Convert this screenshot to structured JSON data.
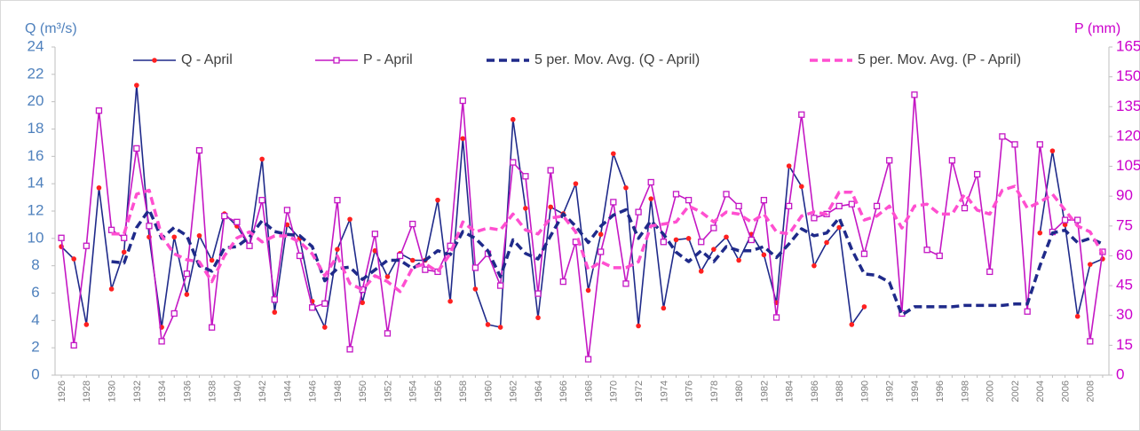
{
  "chart_data": {
    "type": "line",
    "y_label": "Q (m³/s)",
    "y2_label": "P (mm)",
    "categories": [
      "1926",
      null,
      "1928",
      null,
      "1930",
      null,
      "1932",
      null,
      "1934",
      null,
      "1936",
      null,
      "1938",
      null,
      "1940",
      null,
      "1942",
      null,
      "1944",
      null,
      "1946",
      null,
      "1948",
      null,
      "1950",
      null,
      "1952",
      null,
      "1954",
      null,
      "1956",
      null,
      "1958",
      null,
      "1960",
      null,
      "1962",
      null,
      "1964",
      null,
      "1966",
      null,
      "1968",
      null,
      "1970",
      null,
      "1972",
      null,
      "1974",
      null,
      "1976",
      null,
      "1978",
      null,
      "1980",
      null,
      "1982",
      null,
      "1984",
      null,
      "1986",
      null,
      "1988",
      null,
      "1990",
      null,
      "1992",
      null,
      "1994",
      null,
      "1996",
      null,
      "1998",
      null,
      "2000",
      null,
      "2002",
      null,
      "2004",
      null,
      "2006",
      null,
      "2008",
      null
    ],
    "series": [
      {
        "name": "Q - April",
        "color": "#1f2a8a",
        "marker": "plus",
        "marker_color": "#ff2020",
        "line_style": "solid",
        "axis": "y",
        "values": [
          9.4,
          8.5,
          3.7,
          13.7,
          6.3,
          9.0,
          21.2,
          10.1,
          3.5,
          10.1,
          5.9,
          10.2,
          8.4,
          11.8,
          10.9,
          9.4,
          15.8,
          4.6,
          11.0,
          10.0,
          5.4,
          3.5,
          9.2,
          11.4,
          5.3,
          9.1,
          7.2,
          8.9,
          8.4,
          8.4,
          12.8,
          5.4,
          17.3,
          6.3,
          3.7,
          3.5,
          18.7,
          12.2,
          4.2,
          12.3,
          11.8,
          14.0,
          6.2,
          10.3,
          16.2,
          13.7,
          3.6,
          12.9,
          4.9,
          9.9,
          10.0,
          7.6,
          9.2,
          10.1,
          8.4,
          10.3,
          8.8,
          5.3,
          15.3,
          13.8,
          8.0,
          9.7,
          10.8,
          3.7,
          5.0,
          null,
          null,
          null,
          null,
          null,
          null,
          null,
          null,
          null,
          null,
          null,
          null,
          null,
          10.4,
          16.4,
          11.0,
          4.3,
          8.1,
          8.5
        ]
      },
      {
        "name": "P - April",
        "color": "#c417c4",
        "marker": "square",
        "marker_color": "#c417c4",
        "line_style": "solid",
        "axis": "y2",
        "values": [
          69,
          15,
          65,
          133,
          73,
          69,
          114,
          75,
          17,
          31,
          51,
          113,
          24,
          80,
          77,
          65,
          88,
          38,
          83,
          60,
          34,
          36,
          88,
          13,
          43,
          71,
          21,
          60,
          76,
          53,
          52,
          65,
          138,
          54,
          61,
          45,
          107,
          100,
          41,
          103,
          47,
          67,
          8,
          62,
          87,
          46,
          82,
          97,
          67,
          91,
          88,
          67,
          74,
          91,
          85,
          68,
          88,
          29,
          85,
          131,
          79,
          81,
          85,
          86,
          61,
          85,
          108,
          31,
          141,
          63,
          60,
          108,
          84,
          101,
          52,
          120,
          116,
          32,
          116,
          72,
          78,
          78,
          17,
          62
        ]
      },
      {
        "name": "5 per. Mov. Avg. (Q - April)",
        "color": "#1f2a8a",
        "marker": null,
        "line_style": "dashed",
        "axis": "y",
        "values": [
          null,
          null,
          null,
          null,
          8.3,
          8.2,
          10.8,
          12.1,
          10.0,
          10.8,
          10.2,
          8.0,
          7.6,
          9.3,
          9.4,
          10.1,
          11.3,
          10.5,
          10.3,
          10.2,
          9.4,
          6.9,
          7.8,
          7.9,
          7.0,
          7.7,
          8.4,
          8.4,
          7.8,
          8.4,
          9.1,
          8.8,
          10.5,
          10.0,
          9.1,
          7.2,
          9.9,
          8.9,
          8.5,
          10.2,
          11.8,
          10.9,
          9.7,
          10.9,
          11.7,
          12.1,
          10.0,
          11.3,
          10.3,
          9.0,
          8.3,
          9.1,
          8.3,
          9.4,
          9.1,
          9.1,
          9.4,
          8.6,
          9.6,
          10.7,
          10.2,
          10.4,
          11.5,
          9.2,
          7.4,
          7.3,
          6.8,
          4.4,
          5.0,
          5.0,
          5.0,
          5.0,
          5.1,
          5.1,
          5.1,
          5.1,
          5.2,
          5.2,
          8.0,
          10.4,
          10.6,
          9.7,
          10.0,
          9.6
        ]
      },
      {
        "name": "5 per. Mov. Avg. (P - April)",
        "color": "#ff4fd0",
        "marker": null,
        "line_style": "dashed",
        "axis": "y2",
        "values": [
          null,
          null,
          null,
          null,
          71,
          71,
          91,
          93,
          70,
          61,
          58,
          57,
          47,
          60,
          69,
          72,
          67,
          70,
          70,
          67,
          61,
          50,
          60,
          46,
          43,
          50,
          47,
          42,
          54,
          56,
          52,
          61,
          77,
          72,
          74,
          73,
          81,
          73,
          71,
          79,
          80,
          72,
          53,
          57,
          54,
          54,
          57,
          75,
          76,
          77,
          85,
          82,
          77,
          82,
          81,
          77,
          81,
          72,
          71,
          80,
          82,
          81,
          92,
          92,
          78,
          80,
          85,
          74,
          85,
          86,
          81,
          81,
          91,
          83,
          81,
          93,
          95,
          84,
          87,
          91,
          83,
          75,
          72,
          61
        ]
      }
    ],
    "ylim": [
      0,
      24
    ],
    "yticks": [
      0,
      2,
      4,
      6,
      8,
      10,
      12,
      14,
      16,
      18,
      20,
      22,
      24
    ],
    "y2lim": [
      0,
      165
    ],
    "y2ticks": [
      0,
      15,
      30,
      45,
      60,
      75,
      90,
      105,
      120,
      135,
      150,
      165
    ],
    "grid": false,
    "legend": "top"
  }
}
